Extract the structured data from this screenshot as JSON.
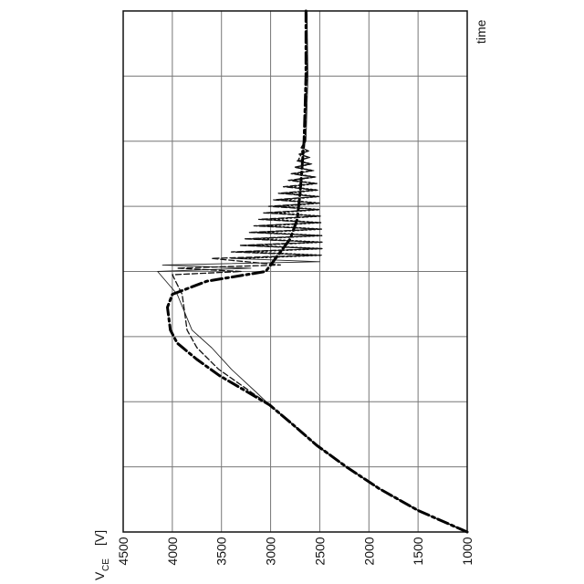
{
  "chart_data": {
    "type": "line",
    "orientation": "rotated 90 degrees (time runs upward, voltage decreases to the right)",
    "ylabel": "V",
    "ylabel_sub": "CE",
    "ylabel_unit": "[V]",
    "xlabel": "time",
    "ylim": [
      1000,
      4500
    ],
    "yticks": [
      "4500",
      "4000",
      "3500",
      "3000",
      "2500",
      "2000",
      "1500",
      "1000"
    ],
    "x_divisions": 8,
    "grid": true,
    "series": [
      {
        "style": "thin-solid",
        "points": [
          [
            0.0,
            1000
          ],
          [
            0.33,
            1500
          ],
          [
            0.67,
            1900
          ],
          [
            1.0,
            2230
          ],
          [
            1.33,
            2530
          ],
          [
            1.67,
            2790
          ],
          [
            1.95,
            3010
          ],
          [
            2.15,
            3150
          ],
          [
            2.5,
            3400
          ],
          [
            2.83,
            3600
          ],
          [
            3.1,
            3800
          ],
          [
            3.65,
            3950
          ],
          [
            4.0,
            4150
          ],
          [
            4.05,
            3200
          ],
          [
            4.1,
            4100
          ],
          [
            4.15,
            2500
          ],
          [
            4.2,
            3400
          ],
          [
            4.25,
            2480
          ],
          [
            4.3,
            3360
          ],
          [
            4.35,
            2480
          ],
          [
            4.4,
            3300
          ],
          [
            4.45,
            2490
          ],
          [
            4.5,
            3250
          ],
          [
            4.55,
            2490
          ],
          [
            4.6,
            3200
          ],
          [
            4.65,
            2500
          ],
          [
            4.7,
            3150
          ],
          [
            4.75,
            2500
          ],
          [
            4.8,
            3100
          ],
          [
            4.85,
            2500
          ],
          [
            4.9,
            3050
          ],
          [
            4.95,
            2510
          ],
          [
            5.0,
            3000
          ],
          [
            5.05,
            2510
          ],
          [
            5.1,
            2950
          ],
          [
            5.15,
            2520
          ],
          [
            5.2,
            2900
          ],
          [
            5.25,
            2520
          ],
          [
            5.3,
            2850
          ],
          [
            5.35,
            2530
          ],
          [
            5.4,
            2800
          ],
          [
            5.45,
            2540
          ],
          [
            5.5,
            2780
          ],
          [
            5.55,
            2560
          ],
          [
            5.6,
            2750
          ],
          [
            5.65,
            2580
          ],
          [
            5.7,
            2720
          ],
          [
            5.75,
            2600
          ],
          [
            5.8,
            2700
          ],
          [
            5.85,
            2610
          ],
          [
            5.9,
            2680
          ],
          [
            6.0,
            2640
          ],
          [
            6.5,
            2630
          ],
          [
            7.0,
            2620
          ],
          [
            8.0,
            2630
          ]
        ]
      },
      {
        "style": "dashed",
        "points": [
          [
            0.0,
            1000
          ],
          [
            0.33,
            1500
          ],
          [
            0.67,
            1900
          ],
          [
            1.0,
            2230
          ],
          [
            1.33,
            2530
          ],
          [
            1.67,
            2790
          ],
          [
            1.95,
            3010
          ],
          [
            2.15,
            3200
          ],
          [
            2.5,
            3530
          ],
          [
            2.83,
            3750
          ],
          [
            3.1,
            3850
          ],
          [
            3.65,
            3900
          ],
          [
            3.95,
            4000
          ],
          [
            4.0,
            3300
          ],
          [
            4.05,
            3950
          ],
          [
            4.1,
            2900
          ],
          [
            4.2,
            3600
          ],
          [
            4.25,
            2520
          ],
          [
            4.3,
            3400
          ],
          [
            4.35,
            2500
          ],
          [
            4.4,
            3320
          ],
          [
            4.45,
            2500
          ],
          [
            4.5,
            3270
          ],
          [
            4.55,
            2500
          ],
          [
            4.6,
            3220
          ],
          [
            4.65,
            2500
          ],
          [
            4.7,
            3170
          ],
          [
            4.75,
            2510
          ],
          [
            4.8,
            3120
          ],
          [
            4.85,
            2510
          ],
          [
            4.9,
            3070
          ],
          [
            4.95,
            2520
          ],
          [
            5.0,
            3020
          ],
          [
            5.05,
            2520
          ],
          [
            5.1,
            2970
          ],
          [
            5.15,
            2530
          ],
          [
            5.2,
            2920
          ],
          [
            5.25,
            2540
          ],
          [
            5.3,
            2870
          ],
          [
            5.35,
            2550
          ],
          [
            5.4,
            2820
          ],
          [
            5.45,
            2560
          ],
          [
            5.5,
            2790
          ],
          [
            5.55,
            2580
          ],
          [
            5.6,
            2760
          ],
          [
            5.65,
            2600
          ],
          [
            5.7,
            2730
          ],
          [
            5.75,
            2610
          ],
          [
            5.8,
            2710
          ],
          [
            5.85,
            2620
          ],
          [
            5.9,
            2690
          ],
          [
            6.0,
            2650
          ],
          [
            6.5,
            2640
          ],
          [
            7.0,
            2630
          ],
          [
            8.0,
            2630
          ]
        ]
      },
      {
        "style": "heavy-dash-dot",
        "points": [
          [
            0.0,
            1000
          ],
          [
            0.33,
            1500
          ],
          [
            0.67,
            1900
          ],
          [
            1.0,
            2230
          ],
          [
            1.33,
            2530
          ],
          [
            1.67,
            2790
          ],
          [
            1.95,
            3010
          ],
          [
            2.4,
            3520
          ],
          [
            2.65,
            3750
          ],
          [
            2.9,
            3950
          ],
          [
            3.1,
            4020
          ],
          [
            3.45,
            4050
          ],
          [
            3.65,
            4000
          ],
          [
            3.85,
            3650
          ],
          [
            4.0,
            3050
          ],
          [
            4.2,
            2950
          ],
          [
            4.5,
            2800
          ],
          [
            4.8,
            2730
          ],
          [
            5.2,
            2700
          ],
          [
            5.6,
            2680
          ],
          [
            6.0,
            2660
          ],
          [
            6.5,
            2650
          ],
          [
            7.0,
            2640
          ],
          [
            8.0,
            2640
          ]
        ]
      },
      {
        "style": "dotted",
        "points": [
          [
            4.2,
            3300
          ],
          [
            4.25,
            2480
          ],
          [
            4.3,
            3250
          ],
          [
            4.35,
            2470
          ],
          [
            4.4,
            3200
          ],
          [
            4.45,
            2470
          ],
          [
            4.5,
            3150
          ],
          [
            4.55,
            2480
          ],
          [
            4.6,
            3100
          ],
          [
            4.65,
            2480
          ],
          [
            4.7,
            3050
          ],
          [
            4.75,
            2490
          ],
          [
            4.8,
            3000
          ],
          [
            4.85,
            2490
          ],
          [
            4.9,
            2960
          ],
          [
            4.95,
            2500
          ],
          [
            5.0,
            2920
          ],
          [
            5.05,
            2500
          ],
          [
            5.1,
            2880
          ],
          [
            5.15,
            2510
          ],
          [
            5.2,
            2840
          ],
          [
            5.25,
            2520
          ],
          [
            5.3,
            2810
          ],
          [
            5.35,
            2530
          ],
          [
            5.4,
            2780
          ],
          [
            5.45,
            2550
          ],
          [
            5.5,
            2760
          ],
          [
            5.55,
            2570
          ],
          [
            5.6,
            2740
          ],
          [
            5.65,
            2590
          ],
          [
            5.7,
            2720
          ],
          [
            5.8,
            2690
          ],
          [
            5.9,
            2670
          ],
          [
            6.0,
            2650
          ]
        ]
      }
    ]
  }
}
